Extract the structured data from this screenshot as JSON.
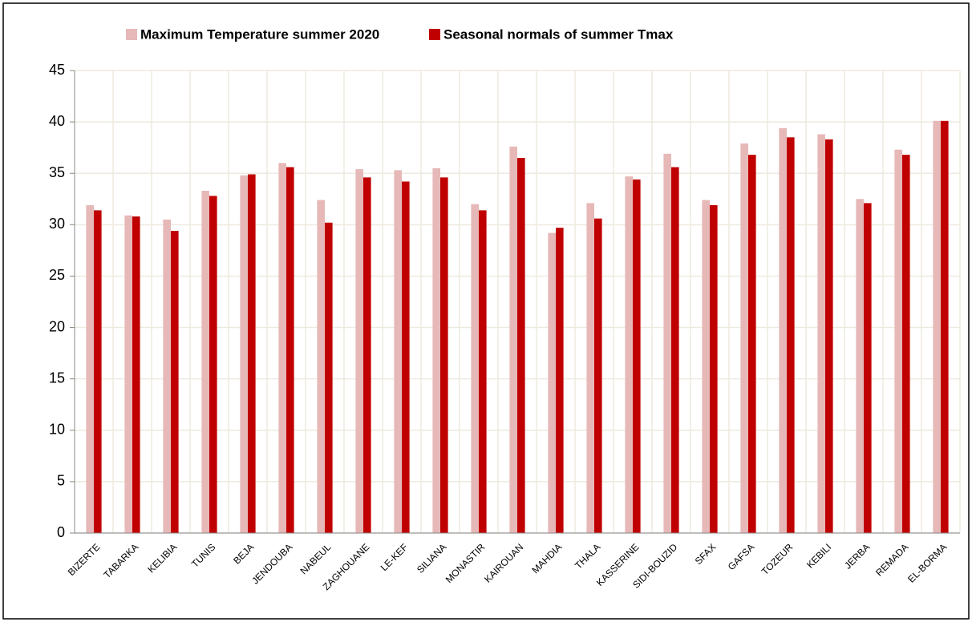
{
  "chart_data": {
    "type": "bar",
    "categories": [
      "BIZERTE",
      "TABARKA",
      "KELIBIA",
      "TUNIS",
      "BEJA",
      "JENDOUBA",
      "NABEUL",
      "ZAGHOUANE",
      "LE-KEF",
      "SILIANA",
      "MONASTIR",
      "KAIROUAN",
      "MAHDIA",
      "THALA",
      "KASSERINE",
      "SIDI-BOUZID",
      "SFAX",
      "GAFSA",
      "TOZEUR",
      "KEBILI",
      "JERBA",
      "REMADA",
      "EL-BORMA"
    ],
    "series": [
      {
        "name": "Maximum Temperature summer 2020",
        "color": "#e6b8b7",
        "values": [
          31.9,
          30.9,
          30.5,
          33.3,
          34.8,
          36.0,
          32.4,
          35.4,
          35.3,
          35.5,
          32.0,
          37.6,
          29.2,
          32.1,
          34.7,
          36.9,
          32.4,
          37.9,
          39.4,
          38.8,
          32.5,
          37.3,
          40.1
        ]
      },
      {
        "name": "Seasonal normals of summer Tmax",
        "color": "#c00000",
        "values": [
          31.4,
          30.8,
          29.4,
          32.8,
          34.9,
          35.6,
          30.2,
          34.6,
          34.2,
          34.6,
          31.4,
          36.5,
          29.7,
          30.6,
          34.4,
          35.6,
          31.9,
          36.8,
          38.5,
          38.3,
          32.1,
          36.8,
          40.1
        ]
      }
    ],
    "ylim": [
      0,
      45
    ],
    "yticks": [
      0,
      5,
      10,
      15,
      20,
      25,
      30,
      35,
      40,
      45
    ],
    "grid": true,
    "legend": "top"
  }
}
